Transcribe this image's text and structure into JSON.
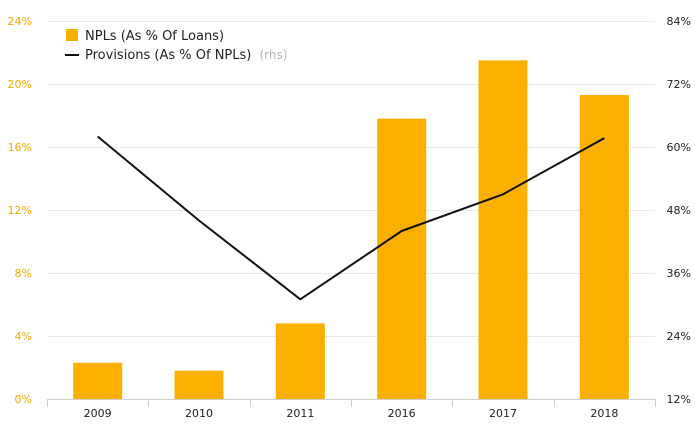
{
  "colors": {
    "bar": "#F9B000",
    "line": "#111111",
    "left_axis_text": "#F0A800",
    "right_axis_text": "#222222",
    "grid": "#e8e8e8",
    "axis": "#cfcfcf",
    "legend_suffix": "#b5b5b5"
  },
  "legend": {
    "npl_label": "NPLs (As % Of Loans)",
    "provisions_label": "Provisions (As % Of NPLs)",
    "provisions_suffix": "(rhs)"
  },
  "chart_data": {
    "type": "bar",
    "title": "",
    "categories": [
      "2009",
      "2010",
      "2011",
      "2016",
      "2017",
      "2018"
    ],
    "series": [
      {
        "name": "NPLs (As % Of Loans)",
        "type": "bar",
        "axis": "left",
        "values": [
          2.3,
          1.8,
          4.8,
          17.8,
          21.5,
          19.3
        ]
      },
      {
        "name": "Provisions (As % Of NPLs)",
        "type": "line",
        "axis": "right",
        "values": [
          62,
          46,
          31,
          44,
          51,
          61.7
        ]
      }
    ],
    "left_axis": {
      "min": 0,
      "max": 24,
      "ticks": [
        0,
        4,
        8,
        12,
        16,
        20,
        24
      ],
      "tick_labels": [
        "0%",
        "4%",
        "8%",
        "12%",
        "16%",
        "20%",
        "24%"
      ]
    },
    "right_axis": {
      "min": 12,
      "max": 84,
      "ticks": [
        12,
        24,
        36,
        48,
        60,
        72,
        84
      ],
      "tick_labels": [
        "12%",
        "24%",
        "36%",
        "48%",
        "60%",
        "72%",
        "84%"
      ]
    },
    "grid": true,
    "legend_position": "top-left"
  }
}
